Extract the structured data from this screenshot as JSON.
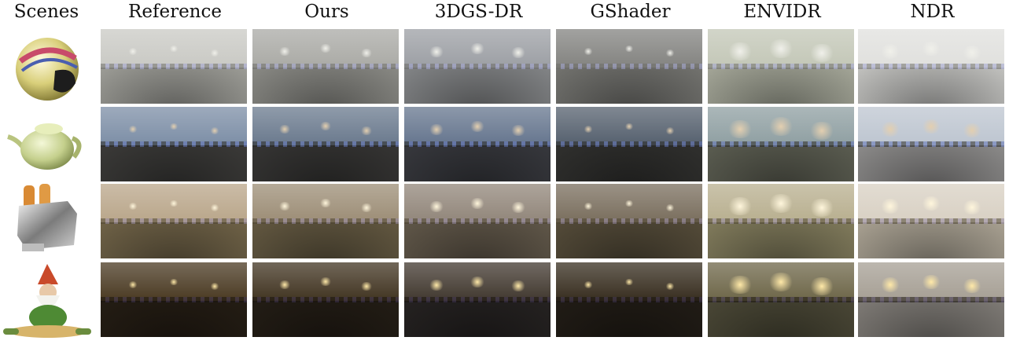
{
  "header": {
    "scenes": "Scenes",
    "reference": "Reference",
    "ours": "Ours",
    "gsdr": "3DGS-DR",
    "gshader": "GShader",
    "envidr": "ENVIDR",
    "ndr": "NDR"
  },
  "rows": [
    {
      "scene": "helmet-icon",
      "palette": {
        "sky": "#c9c9c4",
        "ground": "#9d9d97",
        "accent": "#f0f0ea"
      }
    },
    {
      "scene": "teapot-icon",
      "palette": {
        "sky": "#7c8ea6",
        "ground": "#3b3a38",
        "accent": "#e3cfb0"
      }
    },
    {
      "scene": "toaster-icon",
      "palette": {
        "sky": "#b9a68a",
        "ground": "#6f6247",
        "accent": "#fff6dc"
      }
    },
    {
      "scene": "gnome-icon",
      "palette": {
        "sky": "#4a3a22",
        "ground": "#241d14",
        "accent": "#ffe9a8"
      }
    }
  ]
}
